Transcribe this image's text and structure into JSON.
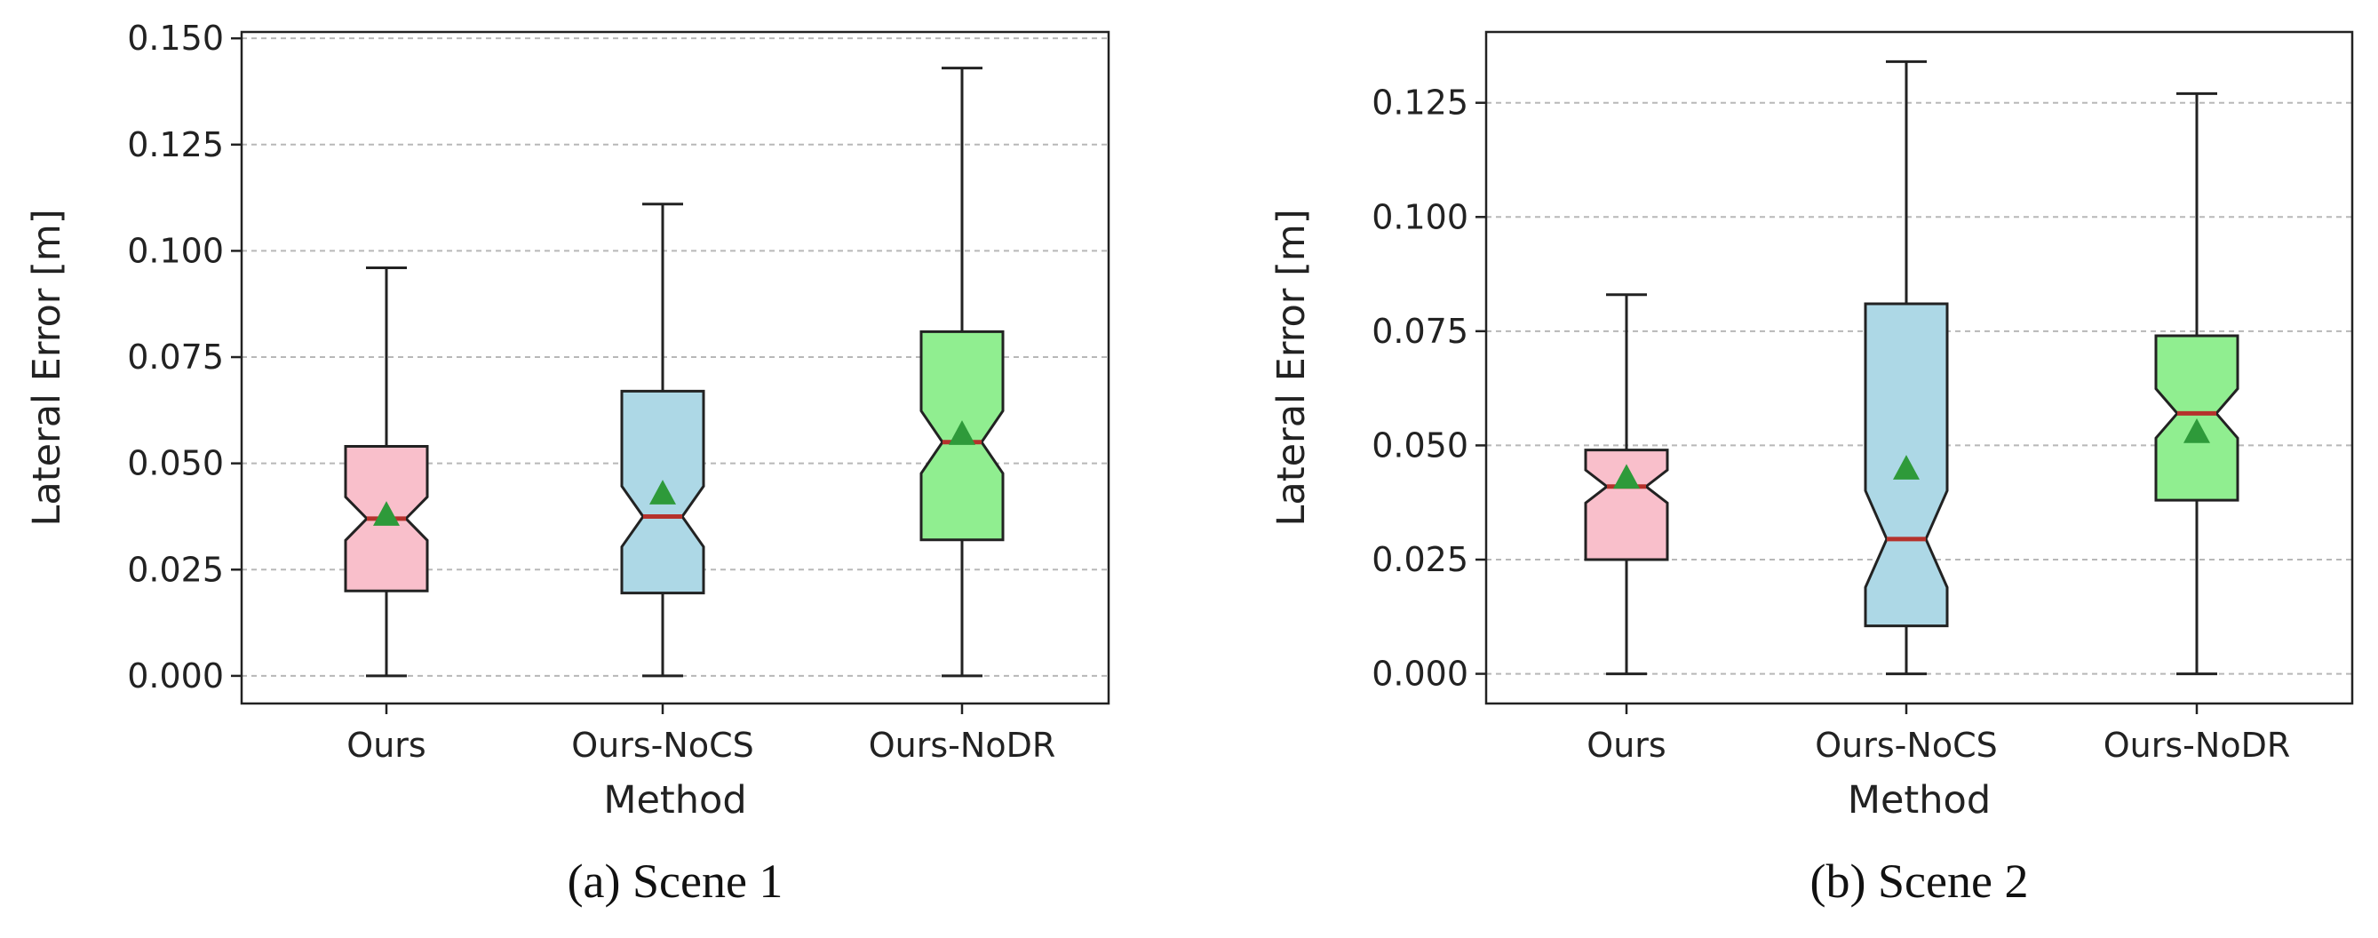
{
  "colors": {
    "Ours": "#f9bfcb",
    "Ours-NoCS": "#add8e6",
    "Ours-NoDR": "#90ee90",
    "median": "#b5322c",
    "mean": "#2e9a3a",
    "grid": "#b8b8b8"
  },
  "chart_data": [
    {
      "type": "boxplot",
      "caption": "(a) Scene 1",
      "xlabel": "Method",
      "ylabel": "Lateral Error [m]",
      "categories": [
        "Ours",
        "Ours-NoCS",
        "Ours-NoDR"
      ],
      "ylim": [
        -0.0065,
        0.1515
      ],
      "yticks": [
        0.0,
        0.025,
        0.05,
        0.075,
        0.1,
        0.125,
        0.15
      ],
      "ytick_labels": [
        "0.000",
        "0.025",
        "0.050",
        "0.075",
        "0.100",
        "0.125",
        "0.150"
      ],
      "grid": true,
      "notched": true,
      "boxes": [
        {
          "name": "Ours",
          "min": 0.0,
          "q1": 0.02,
          "median": 0.037,
          "q3": 0.054,
          "max": 0.096,
          "mean": 0.038
        },
        {
          "name": "Ours-NoCS",
          "min": 0.0,
          "q1": 0.0195,
          "median": 0.0375,
          "q3": 0.067,
          "max": 0.111,
          "mean": 0.043
        },
        {
          "name": "Ours-NoDR",
          "min": 0.0,
          "q1": 0.032,
          "median": 0.055,
          "q3": 0.081,
          "max": 0.143,
          "mean": 0.057
        }
      ]
    },
    {
      "type": "boxplot",
      "caption": "(b) Scene 2",
      "xlabel": "Method",
      "ylabel": "Lateral Error [m]",
      "categories": [
        "Ours",
        "Ours-NoCS",
        "Ours-NoDR"
      ],
      "ylim": [
        -0.0065,
        0.1405
      ],
      "yticks": [
        0.0,
        0.025,
        0.05,
        0.075,
        0.1,
        0.125
      ],
      "ytick_labels": [
        "0.000",
        "0.025",
        "0.050",
        "0.075",
        "0.100",
        "0.125"
      ],
      "grid": true,
      "notched": true,
      "boxes": [
        {
          "name": "Ours",
          "min": 0.0,
          "q1": 0.025,
          "median": 0.041,
          "q3": 0.049,
          "max": 0.083,
          "mean": 0.043
        },
        {
          "name": "Ours-NoCS",
          "min": 0.0,
          "q1": 0.0105,
          "median": 0.0295,
          "q3": 0.081,
          "max": 0.134,
          "mean": 0.045
        },
        {
          "name": "Ours-NoDR",
          "min": 0.0,
          "q1": 0.038,
          "median": 0.057,
          "q3": 0.074,
          "max": 0.127,
          "mean": 0.053
        }
      ]
    }
  ]
}
